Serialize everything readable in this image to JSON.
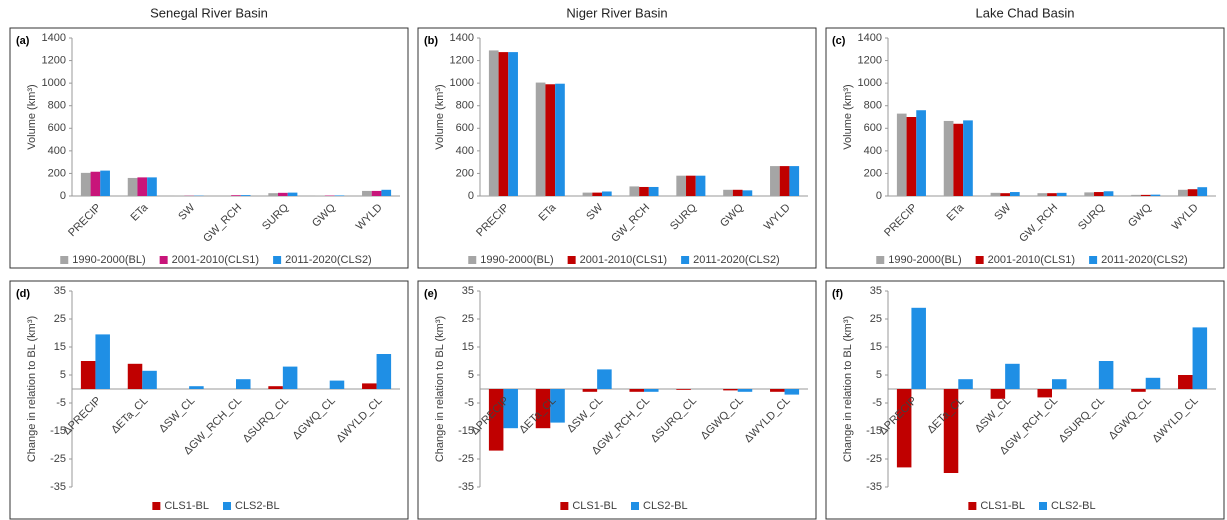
{
  "chart_data": [
    {
      "type": "bar",
      "title": "Senegal River Basin",
      "panel": "(a)",
      "y_label": "Volume (km³)",
      "categories": [
        "PRECIP",
        "ETa",
        "SW",
        "GW_RCH",
        "SURQ",
        "GWQ",
        "WYLD"
      ],
      "series": [
        {
          "name": "1990-2000(BL)",
          "color": "#a5a5a5",
          "values": [
            205,
            160,
            2,
            5,
            25,
            3,
            45
          ]
        },
        {
          "name": "2001-2010(CLS1)",
          "color": "#c8157a",
          "values": [
            215,
            165,
            2,
            7,
            28,
            4,
            45
          ]
        },
        {
          "name": "2011-2020(CLS2)",
          "color": "#1f8fe5",
          "values": [
            225,
            165,
            3,
            8,
            30,
            5,
            55
          ]
        }
      ],
      "ylim": [
        0,
        1400
      ],
      "yticks": [
        0,
        200,
        400,
        600,
        800,
        1000,
        1200,
        1400
      ]
    },
    {
      "type": "bar",
      "title": "Niger River Basin",
      "panel": "(b)",
      "y_label": "Volume (km³)",
      "categories": [
        "PRECIP",
        "ETa",
        "SW",
        "GW_RCH",
        "SURQ",
        "GWQ",
        "WYLD"
      ],
      "series": [
        {
          "name": "1990-2000(BL)",
          "color": "#a5a5a5",
          "values": [
            1290,
            1005,
            30,
            85,
            180,
            55,
            265
          ]
        },
        {
          "name": "2001-2010(CLS1)",
          "color": "#c00000",
          "values": [
            1275,
            990,
            30,
            80,
            180,
            55,
            265
          ]
        },
        {
          "name": "2011-2020(CLS2)",
          "color": "#1f8fe5",
          "values": [
            1275,
            995,
            40,
            80,
            180,
            50,
            265
          ]
        }
      ],
      "ylim": [
        0,
        1400
      ],
      "yticks": [
        0,
        200,
        400,
        600,
        800,
        1000,
        1200,
        1400
      ]
    },
    {
      "type": "bar",
      "title": "Lake Chad Basin",
      "panel": "(c)",
      "y_label": "Volume (km³)",
      "categories": [
        "PRECIP",
        "ETa",
        "SW",
        "GW_RCH",
        "SURQ",
        "GWQ",
        "WYLD"
      ],
      "series": [
        {
          "name": "1990-2000(BL)",
          "color": "#a5a5a5",
          "values": [
            730,
            665,
            28,
            25,
            32,
            10,
            55
          ]
        },
        {
          "name": "2001-2010(CLS1)",
          "color": "#c00000",
          "values": [
            700,
            640,
            25,
            25,
            35,
            10,
            60
          ]
        },
        {
          "name": "2011-2020(CLS2)",
          "color": "#1f8fe5",
          "values": [
            760,
            670,
            35,
            28,
            42,
            12,
            78
          ]
        }
      ],
      "ylim": [
        0,
        1400
      ],
      "yticks": [
        0,
        200,
        400,
        600,
        800,
        1000,
        1200,
        1400
      ]
    },
    {
      "type": "bar",
      "panel": "(d)",
      "y_label": "Change in relation to BL (km³)",
      "categories": [
        "ΔPRECIP",
        "ΔETa_CL",
        "ΔSW_CL",
        "ΔGW_RCH_CL",
        "ΔSURQ_CL",
        "ΔGWQ_CL",
        "ΔWYLD_CL"
      ],
      "series": [
        {
          "name": "CLS1-BL",
          "color": "#c00000",
          "values": [
            10,
            9,
            0,
            0,
            1,
            0,
            2
          ]
        },
        {
          "name": "CLS2-BL",
          "color": "#1f8fe5",
          "values": [
            19.5,
            6.5,
            1,
            3.5,
            8,
            3,
            12.5
          ]
        }
      ],
      "ylim": [
        -35,
        35
      ],
      "yticks": [
        -35,
        -25,
        -15,
        -5,
        5,
        15,
        25,
        35
      ]
    },
    {
      "type": "bar",
      "panel": "(e)",
      "y_label": "Change in relation to BL (km³)",
      "categories": [
        "ΔPRECIP",
        "ΔETa_CL",
        "ΔSW_CL",
        "ΔGW_RCH_CL",
        "ΔSURQ_CL",
        "ΔGWQ_CL",
        "ΔWYLD_CL"
      ],
      "series": [
        {
          "name": "CLS1-BL",
          "color": "#c00000",
          "values": [
            -22,
            -14,
            -1,
            -1,
            -0.3,
            -0.5,
            -1
          ]
        },
        {
          "name": "CLS2-BL",
          "color": "#1f8fe5",
          "values": [
            -14,
            -12,
            7,
            -1,
            0,
            -1,
            -2
          ]
        }
      ],
      "ylim": [
        -35,
        35
      ],
      "yticks": [
        -35,
        -25,
        -15,
        -5,
        5,
        15,
        25,
        35
      ]
    },
    {
      "type": "bar",
      "panel": "(f)",
      "y_label": "Change in relation to BL (km³)",
      "categories": [
        "ΔPRECIP",
        "ΔETa_CL",
        "ΔSW_CL",
        "ΔGW_RCH_CL",
        "ΔSURQ_CL",
        "ΔGWQ_CL",
        "ΔWYLD_CL"
      ],
      "series": [
        {
          "name": "CLS1-BL",
          "color": "#c00000",
          "values": [
            -28,
            -30,
            -3.5,
            -3,
            0,
            -1,
            5
          ]
        },
        {
          "name": "CLS2-BL",
          "color": "#1f8fe5",
          "values": [
            29,
            3.5,
            9,
            3.5,
            10,
            4,
            22
          ]
        }
      ],
      "ylim": [
        -35,
        35
      ],
      "yticks": [
        -35,
        -25,
        -15,
        -5,
        5,
        15,
        25,
        35
      ]
    }
  ]
}
